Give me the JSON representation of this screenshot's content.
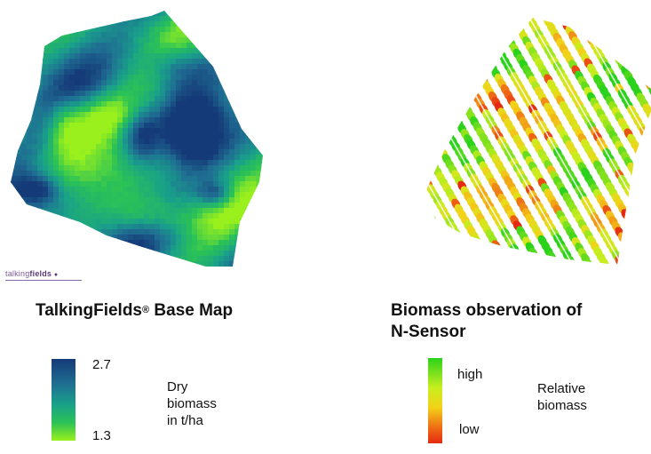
{
  "left_panel": {
    "title": "TalkingFields",
    "title_mark": "®",
    "title_suffix": " Base Map",
    "logo": {
      "thin": "talking",
      "bold": "fields",
      "dot": "●"
    },
    "legend": {
      "max_label": "2.7",
      "min_label": "1.3",
      "desc": [
        "Dry",
        "biomass",
        "in t/ha"
      ],
      "colors": [
        "#153a78",
        "#1f6d92",
        "#19a08a",
        "#2bc256",
        "#99f01c"
      ]
    }
  },
  "right_panel": {
    "title_line1": "Biomass observation of",
    "title_line2": "N-Sensor",
    "legend": {
      "high_label": "high",
      "low_label": "low",
      "desc": [
        "Relative",
        "biomass"
      ],
      "colors": [
        "#2ad21c",
        "#c8ee1e",
        "#f3d219",
        "#ef6a14",
        "#e42a12"
      ]
    }
  }
}
